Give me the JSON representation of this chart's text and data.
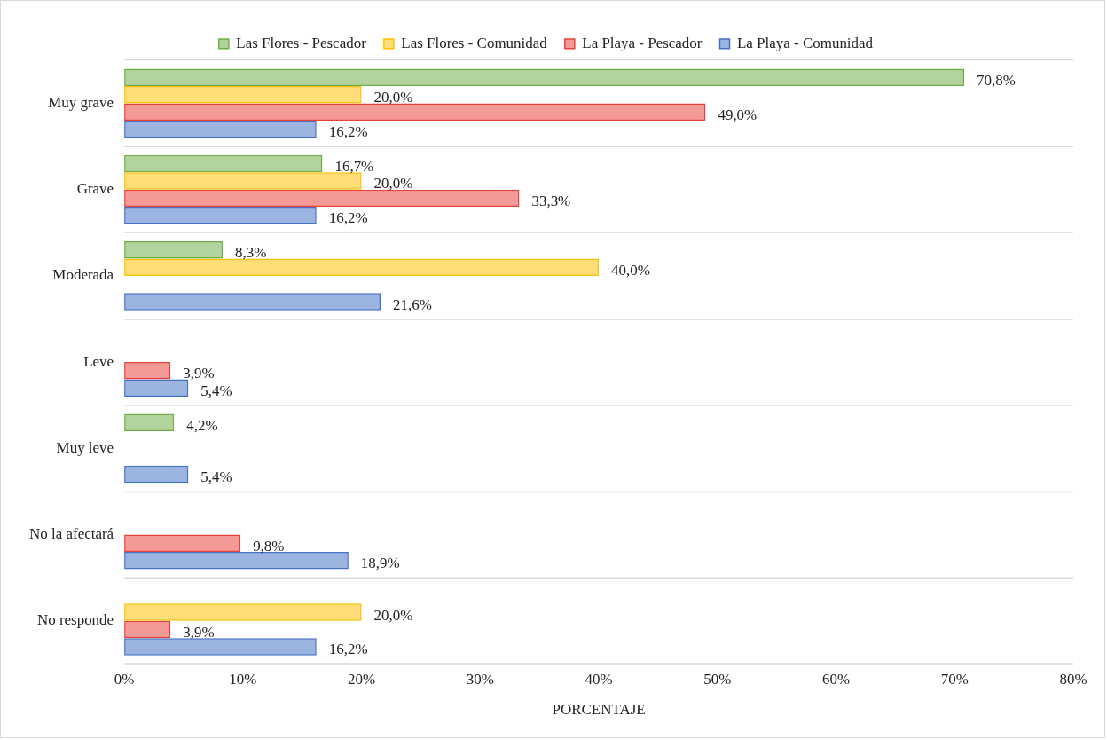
{
  "chart_data": {
    "type": "bar",
    "orientation": "horizontal",
    "xlabel": "PORCENTAJE",
    "categories": [
      "Muy grave",
      "Grave",
      "Moderada",
      "Leve",
      "Muy leve",
      "No la afectará",
      "No responde"
    ],
    "series": [
      {
        "name": "Las Flores - Pescador",
        "color": "#70ad47",
        "values": [
          70.8,
          16.7,
          8.3,
          null,
          4.2,
          null,
          null
        ],
        "value_labels": [
          "70,8%",
          "16,7%",
          "8,3%",
          null,
          "4,2%",
          null,
          null
        ]
      },
      {
        "name": "Las Flores - Comunidad",
        "color": "#ffc000",
        "values": [
          20.0,
          20.0,
          40.0,
          null,
          null,
          null,
          20.0
        ],
        "value_labels": [
          "20,0%",
          "20,0%",
          "40,0%",
          null,
          null,
          null,
          "20,0%"
        ]
      },
      {
        "name": "La Playa - Pescador",
        "color": "#e8403a",
        "values": [
          49.0,
          33.3,
          null,
          3.9,
          null,
          9.8,
          3.9
        ],
        "value_labels": [
          "49,0%",
          "33,3%",
          null,
          "3,9%",
          null,
          "9,8%",
          "3,9%"
        ]
      },
      {
        "name": "La Playa - Comunidad",
        "color": "#4472c4",
        "values": [
          16.2,
          16.2,
          21.6,
          5.4,
          5.4,
          18.9,
          16.2
        ],
        "value_labels": [
          "16,2%",
          "16,2%",
          "21,6%",
          "5,4%",
          "5,4%",
          "18,9%",
          "16,2%"
        ]
      }
    ],
    "xlim": [
      0,
      80
    ],
    "xticks": [
      {
        "value": 0,
        "label": "0%"
      },
      {
        "value": 10,
        "label": "10%"
      },
      {
        "value": 20,
        "label": "20%"
      },
      {
        "value": 30,
        "label": "30%"
      },
      {
        "value": 40,
        "label": "40%"
      },
      {
        "value": 50,
        "label": "50%"
      },
      {
        "value": 60,
        "label": "60%"
      },
      {
        "value": 70,
        "label": "70%"
      },
      {
        "value": 80,
        "label": "80%"
      }
    ],
    "grid": "y",
    "legend": "top"
  }
}
